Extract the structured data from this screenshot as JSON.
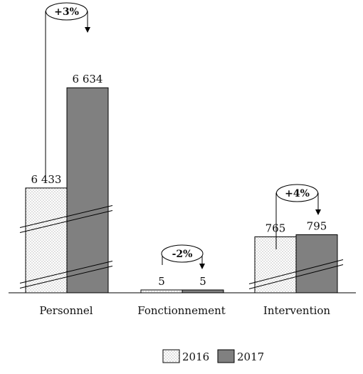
{
  "chart_data": {
    "type": "bar",
    "categories": [
      "Personnel",
      "Fonctionnement",
      "Intervention"
    ],
    "series": [
      {
        "name": "2016",
        "values": [
          6433,
          5,
          765
        ],
        "value_labels": [
          "6 433",
          "5",
          "765"
        ],
        "fill": "dotted",
        "color": "#ffffff"
      },
      {
        "name": "2017",
        "values": [
          6634,
          5,
          795
        ],
        "value_labels": [
          "6 634",
          "5",
          "795"
        ],
        "fill": "solid",
        "color": "#808080"
      }
    ],
    "changes": [
      "+3%",
      "-2%",
      "+4%"
    ],
    "axis_breaks": true,
    "legend_position": "bottom-center",
    "title": "",
    "xlabel": "",
    "ylabel": "",
    "grid": false
  }
}
